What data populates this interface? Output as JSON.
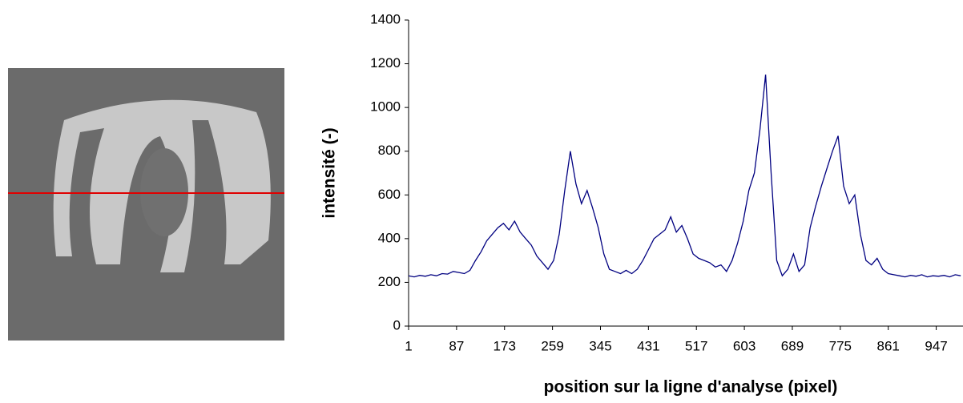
{
  "chart_data": {
    "type": "line",
    "y_label": "intensité (-)",
    "x_label": "position sur la ligne d'analyse (pixel)",
    "xlim": [
      1,
      995
    ],
    "ylim": [
      0,
      1400
    ],
    "xticks": [
      1,
      87,
      173,
      259,
      345,
      431,
      517,
      603,
      689,
      775,
      861,
      947
    ],
    "yticks": [
      0,
      200,
      400,
      600,
      800,
      1000,
      1200,
      1400
    ],
    "series": [
      {
        "color": "#000080",
        "x": [
          1,
          11,
          21,
          31,
          41,
          51,
          61,
          71,
          81,
          91,
          101,
          111,
          121,
          131,
          141,
          151,
          161,
          171,
          181,
          191,
          201,
          211,
          221,
          231,
          241,
          251,
          261,
          271,
          281,
          291,
          301,
          311,
          321,
          331,
          341,
          351,
          361,
          371,
          381,
          391,
          401,
          411,
          421,
          431,
          441,
          451,
          461,
          471,
          481,
          491,
          501,
          511,
          521,
          531,
          541,
          551,
          561,
          571,
          581,
          591,
          601,
          611,
          621,
          631,
          641,
          651,
          661,
          671,
          681,
          691,
          701,
          711,
          721,
          731,
          741,
          751,
          761,
          771,
          781,
          791,
          801,
          811,
          821,
          831,
          841,
          851,
          861,
          871,
          881,
          891,
          901,
          911,
          921,
          931,
          941,
          951,
          961,
          971,
          981,
          991
        ],
        "values": [
          230,
          225,
          232,
          228,
          235,
          230,
          240,
          238,
          250,
          245,
          240,
          255,
          300,
          340,
          390,
          420,
          450,
          470,
          440,
          480,
          430,
          400,
          370,
          320,
          290,
          260,
          300,
          420,
          620,
          800,
          650,
          560,
          620,
          540,
          450,
          330,
          260,
          250,
          240,
          255,
          240,
          260,
          300,
          350,
          400,
          420,
          440,
          500,
          430,
          460,
          400,
          330,
          310,
          300,
          290,
          270,
          280,
          250,
          300,
          380,
          480,
          620,
          700,
          900,
          1150,
          700,
          300,
          230,
          260,
          330,
          250,
          280,
          450,
          550,
          640,
          720,
          800,
          870,
          640,
          560,
          600,
          420,
          300,
          280,
          310,
          260,
          240,
          235,
          230,
          225,
          232,
          228,
          235,
          225,
          230,
          228,
          232,
          225,
          235,
          230
        ]
      }
    ]
  }
}
